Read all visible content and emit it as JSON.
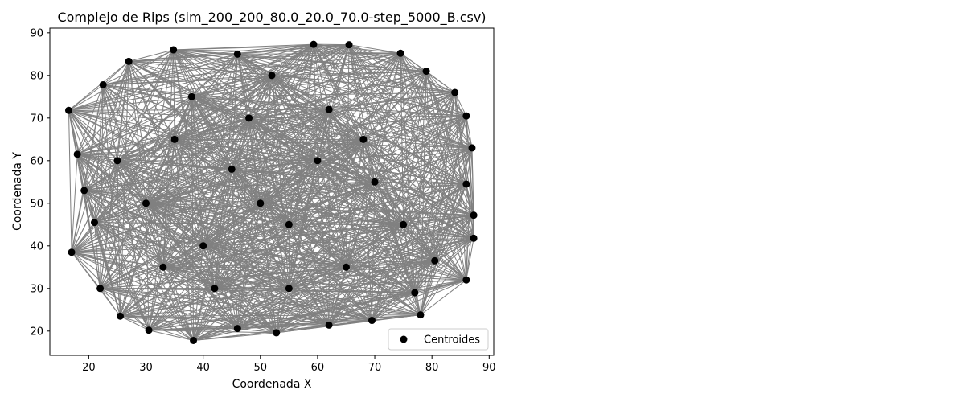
{
  "chart_data": {
    "type": "scatter",
    "title": "Complejo de Rips (sim_200_200_80.0_20.0_70.0-step_5000_B.csv)",
    "xlabel": "Coordenada X",
    "ylabel": "Coordenada Y",
    "xlim": [
      13.2,
      90.8
    ],
    "ylim": [
      14.3,
      91.1
    ],
    "xticks": [
      20,
      30,
      40,
      50,
      60,
      70,
      80,
      90
    ],
    "yticks": [
      20,
      30,
      40,
      50,
      60,
      70,
      80,
      90
    ],
    "grid": false,
    "legend": {
      "placement": "lower-right",
      "entries": [
        "Centroides"
      ]
    },
    "colors": {
      "points": "#000000",
      "edges": "#808080"
    },
    "edges_note": "",
    "series": [
      {
        "name": "Centroides",
        "points": [
          [
            16.5,
            71.8
          ],
          [
            17.0,
            38.5
          ],
          [
            18.0,
            61.5
          ],
          [
            19.2,
            53.0
          ],
          [
            21.0,
            45.5
          ],
          [
            22.0,
            30.0
          ],
          [
            22.5,
            77.8
          ],
          [
            25.5,
            23.5
          ],
          [
            27.0,
            83.3
          ],
          [
            30.5,
            20.2
          ],
          [
            34.8,
            86.0
          ],
          [
            38.3,
            17.8
          ],
          [
            46.0,
            85.0
          ],
          [
            46.0,
            20.6
          ],
          [
            52.8,
            19.6
          ],
          [
            59.3,
            87.3
          ],
          [
            62.0,
            21.4
          ],
          [
            65.5,
            87.2
          ],
          [
            69.5,
            22.5
          ],
          [
            74.5,
            85.2
          ],
          [
            78.0,
            23.8
          ],
          [
            79.0,
            81.0
          ],
          [
            84.0,
            76.0
          ],
          [
            86.0,
            32.0
          ],
          [
            86.0,
            70.5
          ],
          [
            87.0,
            63.0
          ],
          [
            87.3,
            47.2
          ],
          [
            87.3,
            41.8
          ],
          [
            86.0,
            54.5
          ],
          [
            80.5,
            36.5
          ],
          [
            77.0,
            29.0
          ],
          [
            50.0,
            50.0
          ],
          [
            45.0,
            58.0
          ],
          [
            55.0,
            45.0
          ],
          [
            40.0,
            40.0
          ],
          [
            60.0,
            60.0
          ],
          [
            35.0,
            65.0
          ],
          [
            65.0,
            35.0
          ],
          [
            70.0,
            55.0
          ],
          [
            30.0,
            50.0
          ],
          [
            48.0,
            70.0
          ],
          [
            55.0,
            30.0
          ],
          [
            25.0,
            60.0
          ],
          [
            75.0,
            45.0
          ],
          [
            42.0,
            30.0
          ],
          [
            62.0,
            72.0
          ],
          [
            33.0,
            35.0
          ],
          [
            68.0,
            65.0
          ],
          [
            52.0,
            80.0
          ],
          [
            38.0,
            75.0
          ]
        ]
      }
    ]
  }
}
